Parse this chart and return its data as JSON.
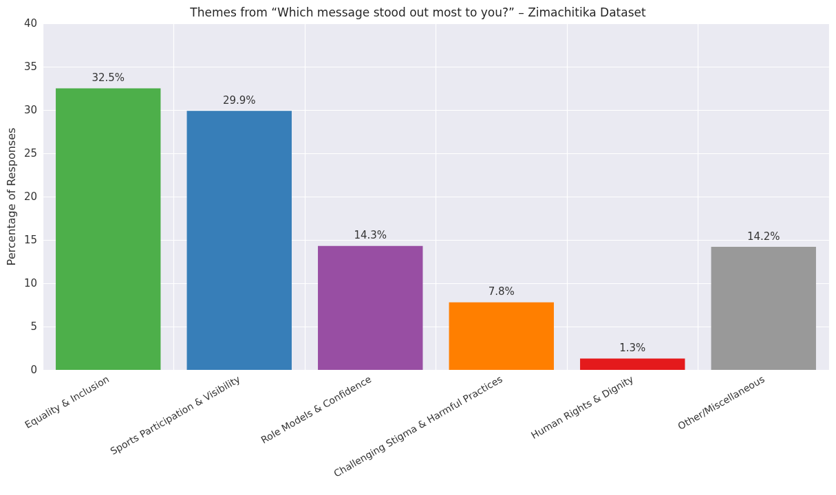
{
  "chart_data": {
    "type": "bar",
    "title": "Themes from “Which message stood out most to you?” – Zimachitika Dataset",
    "ylabel": "Percentage of Responses",
    "categories": [
      "Equality & Inclusion",
      "Sports Participation & Visibility",
      "Role Models & Confidence",
      "Challenging Stigma & Harmful Practices",
      "Human Rights & Dignity",
      "Other/Miscellaneous"
    ],
    "values": [
      32.5,
      29.9,
      14.3,
      7.8,
      1.3,
      14.2
    ],
    "colors": [
      "#4daf4a",
      "#377eb8",
      "#984ea3",
      "#ff7f00",
      "#e41a1c",
      "#999999"
    ],
    "value_labels": [
      "32.5%",
      "29.9%",
      "14.3%",
      "7.8%",
      "1.3%",
      "14.2%"
    ],
    "ylim": [
      0,
      40
    ],
    "yticks": [
      0,
      5,
      10,
      15,
      20,
      25,
      30,
      35,
      40
    ],
    "grid": true
  }
}
